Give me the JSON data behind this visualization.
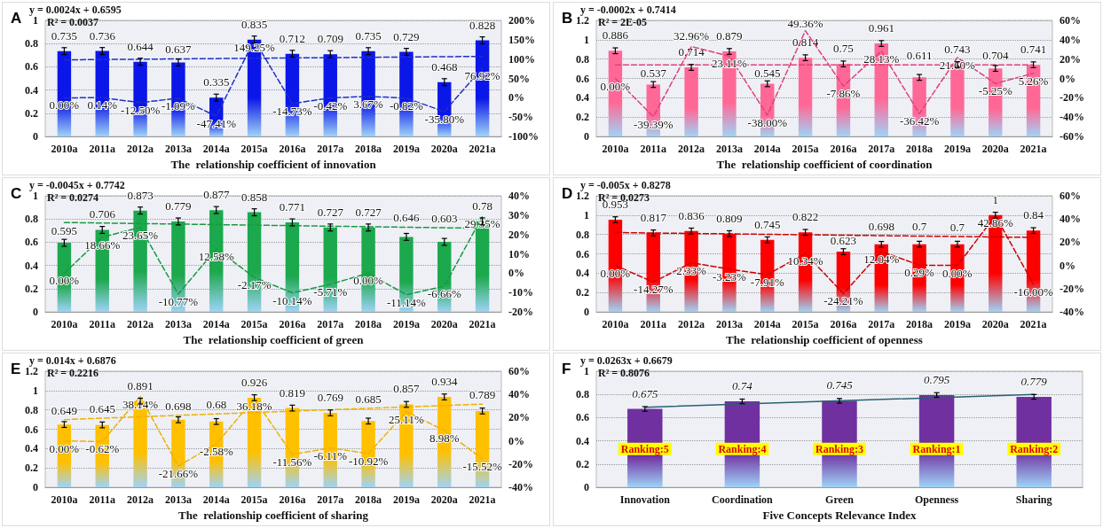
{
  "chart_data": [
    {
      "type": "bar",
      "title": "A",
      "xlabel": "The  relationship coefficient of innovation",
      "categories": [
        "2010a",
        "2011a",
        "2012a",
        "2013a",
        "2014a",
        "2015a",
        "2016a",
        "2017a",
        "2018a",
        "2019a",
        "2020a",
        "2021a"
      ],
      "ylim": [
        0,
        1
      ],
      "yticks": [
        0,
        0.2,
        0.4,
        0.6,
        0.8,
        1
      ],
      "y2lim": [
        -100,
        200
      ],
      "y2ticks": [
        {
          "value": -100,
          "label": "-100%"
        },
        {
          "value": -50,
          "label": "-50%"
        },
        {
          "value": 0,
          "label": "0%"
        },
        {
          "value": 50,
          "label": "50%"
        },
        {
          "value": 100,
          "label": "100%"
        },
        {
          "value": 150,
          "label": "150%"
        },
        {
          "value": 200,
          "label": "200%"
        }
      ],
      "grid": "y",
      "annotations": [
        "y = 0.0024x + 0.6595",
        "R² = 0.0037"
      ],
      "series": [
        {
          "color": "#0b16e8",
          "values": [
            0.735,
            0.736,
            0.644,
            0.637,
            0.335,
            0.835,
            0.712,
            0.709,
            0.735,
            0.729,
            0.468,
            0.828
          ],
          "value_labels": [
            "0.735",
            "0.736",
            "0.644",
            "0.637",
            "0.335",
            "0.835",
            "0.712",
            "0.709",
            "0.735",
            "0.729",
            "0.468",
            "0.828"
          ],
          "errors": [
            0.03,
            0.03,
            0.03,
            0.03,
            0.03,
            0.03,
            0.03,
            0.03,
            0.03,
            0.03,
            0.03,
            0.03
          ]
        },
        {
          "type": "line",
          "axis": "y2",
          "color": "#1f2fc8",
          "line_style": "dashed",
          "marker": "none",
          "values": [
            0,
            0.14,
            -12.5,
            -1.09,
            -47.41,
            149.25,
            -14.73,
            -0.42,
            3.67,
            -0.82,
            -35.8,
            76.92
          ],
          "value_labels": [
            "0.00%",
            "0.14%",
            "-12.50%",
            "-1.09%",
            "-47.41%",
            "149.25%",
            "-14.73%",
            "-0.42%",
            "3.67%",
            "-0.82%",
            "-35.80%",
            "76.92%"
          ]
        },
        {
          "type": "line",
          "color": "#1f2fc8",
          "line_style": "dashed",
          "marker": "none",
          "x": [
            "2010a",
            "2021a"
          ],
          "values": [
            0.66,
            0.69
          ]
        }
      ]
    },
    {
      "type": "bar",
      "title": "B",
      "xlabel": "The  relationship coefficient of coordination",
      "categories": [
        "2010a",
        "2011a",
        "2012a",
        "2013a",
        "2014a",
        "2015a",
        "2016a",
        "2017a",
        "2018a",
        "2019a",
        "2020a",
        "2021a"
      ],
      "ylim": [
        0,
        1.2
      ],
      "yticks": [
        0,
        0.2,
        0.4,
        0.6,
        0.8,
        1,
        1.2
      ],
      "y2lim": [
        -60,
        60
      ],
      "y2ticks": [
        {
          "value": -60,
          "label": "-60%"
        },
        {
          "value": -40,
          "label": "-40%"
        },
        {
          "value": -20,
          "label": "-20%"
        },
        {
          "value": 0,
          "label": "0%"
        },
        {
          "value": 20,
          "label": "20%"
        },
        {
          "value": 40,
          "label": "40%"
        },
        {
          "value": 60,
          "label": "60%"
        }
      ],
      "grid": "y",
      "annotations": [
        "y = -0.0002x + 0.7414",
        "R² = 2E-05"
      ],
      "series": [
        {
          "color": "#ff6896",
          "values": [
            0.886,
            0.537,
            0.714,
            0.879,
            0.545,
            0.814,
            0.75,
            0.961,
            0.611,
            0.743,
            0.704,
            0.741
          ],
          "value_labels": [
            "0.886",
            "0.537",
            "0.714",
            "0.879",
            "0.545",
            "0.814",
            "0.75",
            "0.961",
            "0.611",
            "0.743",
            "0.704",
            "0.741"
          ],
          "errors": [
            0.03,
            0.03,
            0.03,
            0.03,
            0.03,
            0.03,
            0.03,
            0.03,
            0.03,
            0.03,
            0.03,
            0.03
          ]
        },
        {
          "type": "line",
          "axis": "y2",
          "color": "#e0407a",
          "line_style": "dashed",
          "marker": "none",
          "values": [
            0,
            -39.39,
            32.96,
            23.11,
            -38,
            49.36,
            -7.86,
            28.13,
            -36.42,
            21.6,
            -5.25,
            5.26
          ],
          "value_labels": [
            "0.00%",
            "-39.39%",
            "32.96%",
            "23.11%",
            "-38.00%",
            "49.36%",
            "-7.86%",
            "28.13%",
            "-36.42%",
            "21.60%",
            "-5.25%",
            "5.26%"
          ]
        },
        {
          "type": "line",
          "color": "#e0407a",
          "line_style": "dashed",
          "marker": "none",
          "x": [
            "2010a",
            "2021a"
          ],
          "values": [
            0.74,
            0.74
          ]
        }
      ]
    },
    {
      "type": "bar",
      "title": "C",
      "xlabel": "The  relationship coefficient of green",
      "categories": [
        "2010a",
        "2011a",
        "2012a",
        "2013a",
        "2014a",
        "2015a",
        "2016a",
        "2017a",
        "2018a",
        "2019a",
        "2020a",
        "2021a"
      ],
      "ylim": [
        0,
        1
      ],
      "yticks": [
        0,
        0.2,
        0.4,
        0.6,
        0.8,
        1
      ],
      "y2lim": [
        -20,
        40
      ],
      "y2ticks": [
        {
          "value": -20,
          "label": "-20%"
        },
        {
          "value": -10,
          "label": "-10%"
        },
        {
          "value": 0,
          "label": "0%"
        },
        {
          "value": 10,
          "label": "10%"
        },
        {
          "value": 20,
          "label": "20%"
        },
        {
          "value": 30,
          "label": "30%"
        },
        {
          "value": 40,
          "label": "40%"
        }
      ],
      "grid": "y",
      "annotations": [
        "y = -0.0045x + 0.7742",
        "R² = 0.0274"
      ],
      "series": [
        {
          "color": "#1ca84c",
          "values": [
            0.595,
            0.706,
            0.873,
            0.779,
            0.877,
            0.858,
            0.771,
            0.727,
            0.727,
            0.646,
            0.603,
            0.78
          ],
          "value_labels": [
            "0.595",
            "0.706",
            "0.873",
            "0.779",
            "0.877",
            "0.858",
            "0.771",
            "0.727",
            "0.727",
            "0.646",
            "0.603",
            "0.78"
          ],
          "errors": [
            0.03,
            0.03,
            0.03,
            0.03,
            0.03,
            0.03,
            0.03,
            0.03,
            0.03,
            0.03,
            0.03,
            0.03
          ]
        },
        {
          "type": "line",
          "axis": "y2",
          "color": "#1a9a40",
          "line_style": "dashed",
          "marker": "none",
          "values": [
            0,
            18.66,
            23.65,
            -10.77,
            12.58,
            -2.17,
            -10.14,
            -5.71,
            0,
            -11.14,
            -6.66,
            29.35
          ],
          "value_labels": [
            "0.00%",
            "18.66%",
            "23.65%",
            "-10.77%",
            "12.58%",
            "-2.17%",
            "-10.14%",
            "-5.71%",
            "0.00%",
            "-11.14%",
            "-6.66%",
            "29.35%"
          ]
        },
        {
          "type": "line",
          "color": "#1a9a40",
          "line_style": "dashed",
          "marker": "none",
          "x": [
            "2010a",
            "2021a"
          ],
          "values": [
            0.77,
            0.72
          ]
        }
      ]
    },
    {
      "type": "bar",
      "title": "D",
      "xlabel": "The  relationship coefficient of openness",
      "categories": [
        "2010a",
        "2011a",
        "2012a",
        "2013a",
        "2014a",
        "2015a",
        "2016a",
        "2017a",
        "2018a",
        "2019a",
        "2020a",
        "2021a"
      ],
      "ylim": [
        0,
        1.2
      ],
      "yticks": [
        0,
        0.2,
        0.4,
        0.6,
        0.8,
        1,
        1.2
      ],
      "y2lim": [
        -40,
        60
      ],
      "y2ticks": [
        {
          "value": -40,
          "label": "-40%"
        },
        {
          "value": -20,
          "label": "-20%"
        },
        {
          "value": 0,
          "label": "0%"
        },
        {
          "value": 20,
          "label": "20%"
        },
        {
          "value": 40,
          "label": "40%"
        },
        {
          "value": 60,
          "label": "60%"
        }
      ],
      "grid": "y",
      "annotations": [
        "y = -0.005x + 0.8278",
        "R² = 0.0273"
      ],
      "series": [
        {
          "color": "#ff0000",
          "values": [
            0.953,
            0.817,
            0.836,
            0.809,
            0.745,
            0.822,
            0.623,
            0.698,
            0.7,
            0.7,
            1,
            0.84
          ],
          "value_labels": [
            "0.953",
            "0.817",
            "0.836",
            "0.809",
            "0.745",
            "0.822",
            "0.623",
            "0.698",
            "0.7",
            "0.7",
            "1",
            "0.84"
          ],
          "errors": [
            0.03,
            0.03,
            0.03,
            0.03,
            0.03,
            0.03,
            0.03,
            0.03,
            0.03,
            0.03,
            0.03,
            0.03
          ]
        },
        {
          "type": "line",
          "axis": "y2",
          "color": "#d00000",
          "line_style": "dashed",
          "marker": "none",
          "values": [
            0,
            -14.27,
            2.33,
            -3.23,
            -7.91,
            10.34,
            -24.21,
            12.04,
            0.29,
            0,
            42.86,
            -16
          ],
          "value_labels": [
            "0.00%",
            "-14.27%",
            "2.33%",
            "-3.23%",
            "-7.91%",
            "10.34%",
            "-24.21%",
            "12.04%",
            "0.29%",
            "0.00%",
            "42.86%",
            "-16.00%"
          ]
        },
        {
          "type": "line",
          "color": "#d00000",
          "line_style": "dashed",
          "marker": "none",
          "x": [
            "2010a",
            "2021a"
          ],
          "values": [
            0.82,
            0.77
          ]
        }
      ]
    },
    {
      "type": "bar",
      "title": "E",
      "xlabel": "The  relationship coefficient of sharing",
      "categories": [
        "2010a",
        "2011a",
        "2012a",
        "2013a",
        "2014a",
        "2015a",
        "2016a",
        "2017a",
        "2018a",
        "2019a",
        "2020a",
        "2021a"
      ],
      "ylim": [
        0,
        1.2
      ],
      "yticks": [
        0,
        0.2,
        0.4,
        0.6,
        0.8,
        1,
        1.2
      ],
      "y2lim": [
        -40,
        60
      ],
      "y2ticks": [
        {
          "value": -40,
          "label": "-40%"
        },
        {
          "value": -20,
          "label": "-20%"
        },
        {
          "value": 0,
          "label": "0%"
        },
        {
          "value": 20,
          "label": "20%"
        },
        {
          "value": 40,
          "label": "40%"
        },
        {
          "value": 60,
          "label": "60%"
        }
      ],
      "grid": "y",
      "annotations": [
        "y = 0.014x + 0.6876",
        "R² = 0.2216"
      ],
      "series": [
        {
          "color": "#ffc000",
          "values": [
            0.649,
            0.645,
            0.891,
            0.698,
            0.68,
            0.926,
            0.819,
            0.769,
            0.685,
            0.857,
            0.934,
            0.789
          ],
          "value_labels": [
            "0.649",
            "0.645",
            "0.891",
            "0.698",
            "0.68",
            "0.926",
            "0.819",
            "0.769",
            "0.685",
            "0.857",
            "0.934",
            "0.789"
          ],
          "errors": [
            0.03,
            0.03,
            0.03,
            0.03,
            0.03,
            0.03,
            0.03,
            0.03,
            0.03,
            0.03,
            0.03,
            0.03
          ]
        },
        {
          "type": "line",
          "axis": "y2",
          "color": "#f0b000",
          "line_style": "dashed",
          "marker": "none",
          "values": [
            0,
            -0.62,
            38.14,
            -21.66,
            -2.58,
            36.18,
            -11.56,
            -6.11,
            -10.92,
            25.11,
            8.98,
            -15.52
          ],
          "value_labels": [
            "0.00%",
            "-0.62%",
            "38.14%",
            "-21.66%",
            "-2.58%",
            "36.18%",
            "-11.56%",
            "-6.11%",
            "-10.92%",
            "25.11%",
            "8.98%",
            "-15.52%"
          ]
        },
        {
          "type": "line",
          "color": "#f0b000",
          "line_style": "dashed",
          "marker": "none",
          "x": [
            "2010a",
            "2021a"
          ],
          "values": [
            0.7,
            0.86
          ]
        }
      ]
    },
    {
      "type": "bar",
      "title": "F",
      "xlabel": "Five Concepts Relevance Index",
      "categories": [
        "Innovation",
        "Coordination",
        "Green",
        "Openness",
        "Sharing"
      ],
      "ylim": [
        0,
        1
      ],
      "yticks": [
        0,
        0.2,
        0.4,
        0.6,
        0.8,
        1
      ],
      "grid": "y",
      "annotations": [
        "y = 0.0263x + 0.6679",
        "R² = 0.8076",
        "Ranking:5",
        "Ranking:4",
        "Ranking:3",
        "Ranking:1",
        "Ranking:2"
      ],
      "series": [
        {
          "color": "#7030a0",
          "values": [
            0.675,
            0.74,
            0.745,
            0.795,
            0.779
          ],
          "value_labels": [
            "0.675",
            "0.74",
            "0.745",
            "0.795",
            "0.779"
          ],
          "errors": [
            0.02,
            0.02,
            0.02,
            0.02,
            0.02
          ]
        },
        {
          "type": "line",
          "color": "#2a6070",
          "line_style": "solid",
          "marker": "none",
          "x": [
            "Innovation",
            "Sharing"
          ],
          "values": [
            0.69,
            0.8
          ]
        }
      ]
    }
  ]
}
